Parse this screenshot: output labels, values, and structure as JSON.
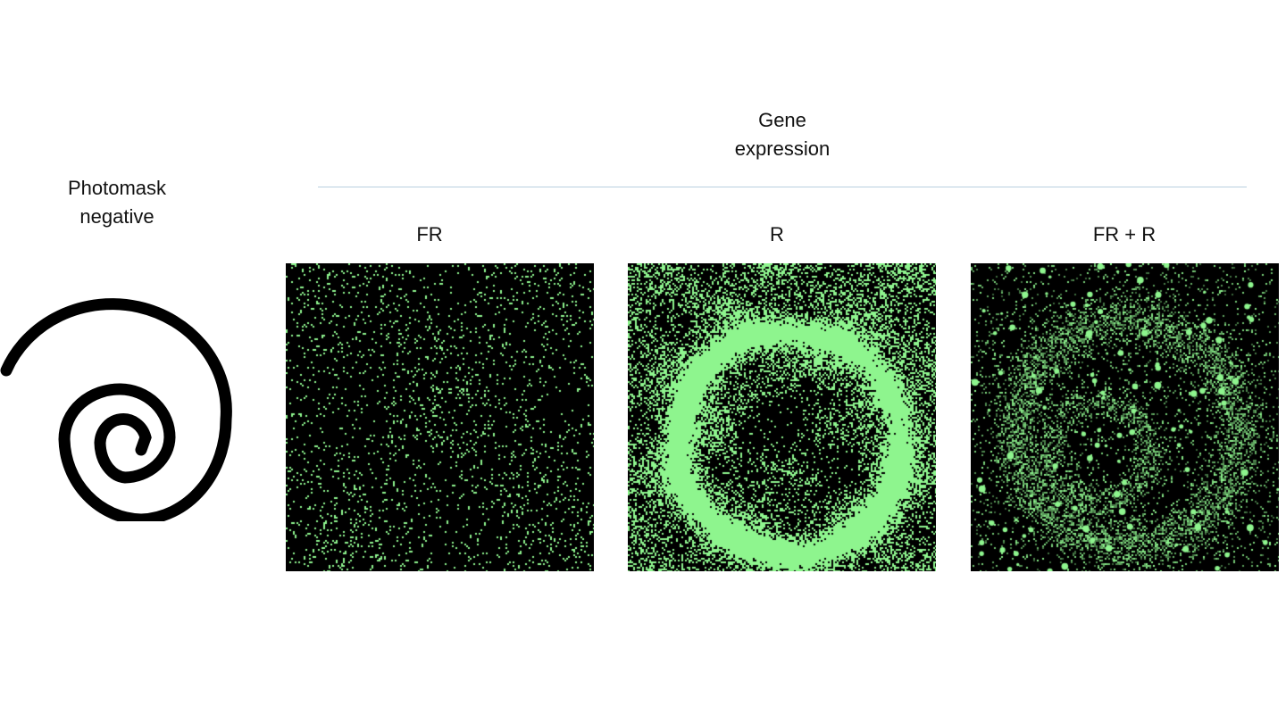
{
  "header": {
    "title_line1": "Gene",
    "title_line2": "expression"
  },
  "left_panel": {
    "label_line1": "Photomask",
    "label_line2": "negative",
    "icon": "spiral-photomask"
  },
  "panels": [
    {
      "label": "FR"
    },
    {
      "label": "R"
    },
    {
      "label": "FR + R"
    }
  ],
  "colors": {
    "fluorescence": "#8ef58e",
    "divider": "#b9d0e0"
  }
}
